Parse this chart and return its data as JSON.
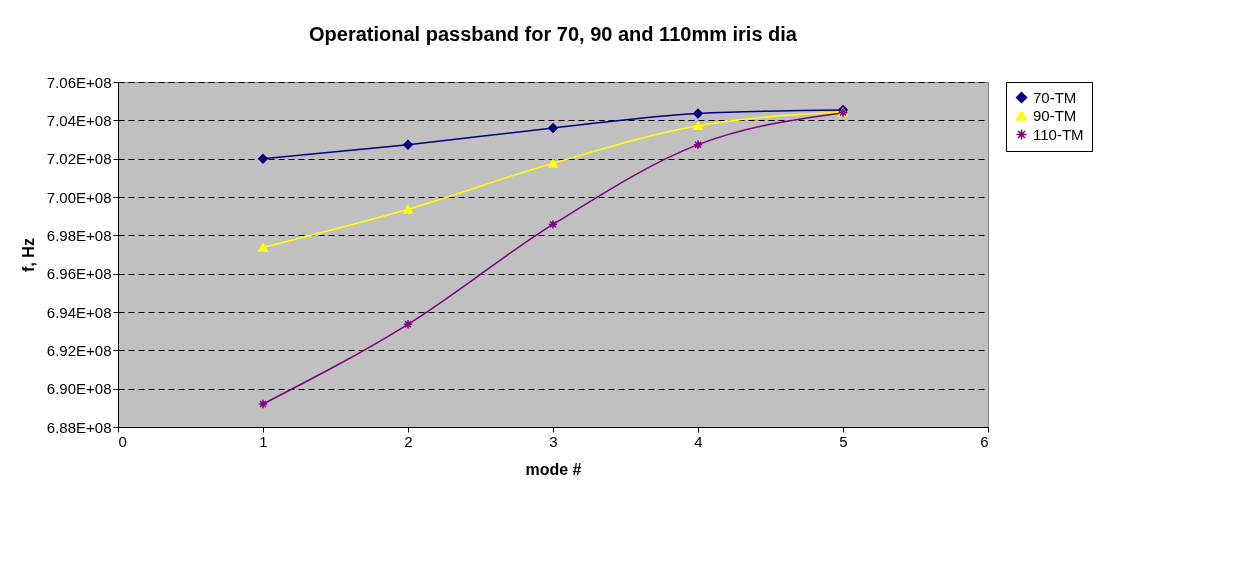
{
  "chart_data": {
    "type": "line",
    "title": "Operational passband for 70, 90 and 110mm iris dia",
    "xlabel": "mode #",
    "ylabel": "f, Hz",
    "x": [
      1,
      2,
      3,
      4,
      5
    ],
    "series": [
      {
        "name": "70-TM",
        "color": "#000080",
        "marker": "diamond",
        "values": [
          702000000,
          702730000,
          703600000,
          704360000,
          704540000
        ]
      },
      {
        "name": "90-TM",
        "color": "#ffff00",
        "marker": "triangle",
        "values": [
          697370000,
          699360000,
          701760000,
          703720000,
          704430000
        ]
      },
      {
        "name": "110-TM",
        "color": "#800080",
        "marker": "cross",
        "values": [
          689200000,
          693360000,
          698570000,
          702730000,
          704400000
        ]
      }
    ],
    "xlim": [
      0,
      6
    ],
    "xticks": [
      0,
      1,
      2,
      3,
      4,
      5,
      6
    ],
    "ylim": [
      688000000,
      706000000
    ],
    "yticks": [
      {
        "value": 688000000,
        "label": "6.88E+08"
      },
      {
        "value": 690000000,
        "label": "6.90E+08"
      },
      {
        "value": 692000000,
        "label": "6.92E+08"
      },
      {
        "value": 694000000,
        "label": "6.94E+08"
      },
      {
        "value": 696000000,
        "label": "6.96E+08"
      },
      {
        "value": 698000000,
        "label": "6.98E+08"
      },
      {
        "value": 700000000,
        "label": "7.00E+08"
      },
      {
        "value": 702000000,
        "label": "7.02E+08"
      },
      {
        "value": 704000000,
        "label": "7.04E+08"
      },
      {
        "value": 706000000,
        "label": "7.06E+08"
      }
    ],
    "grid": "y",
    "legend": "right",
    "line_style": "solid"
  }
}
